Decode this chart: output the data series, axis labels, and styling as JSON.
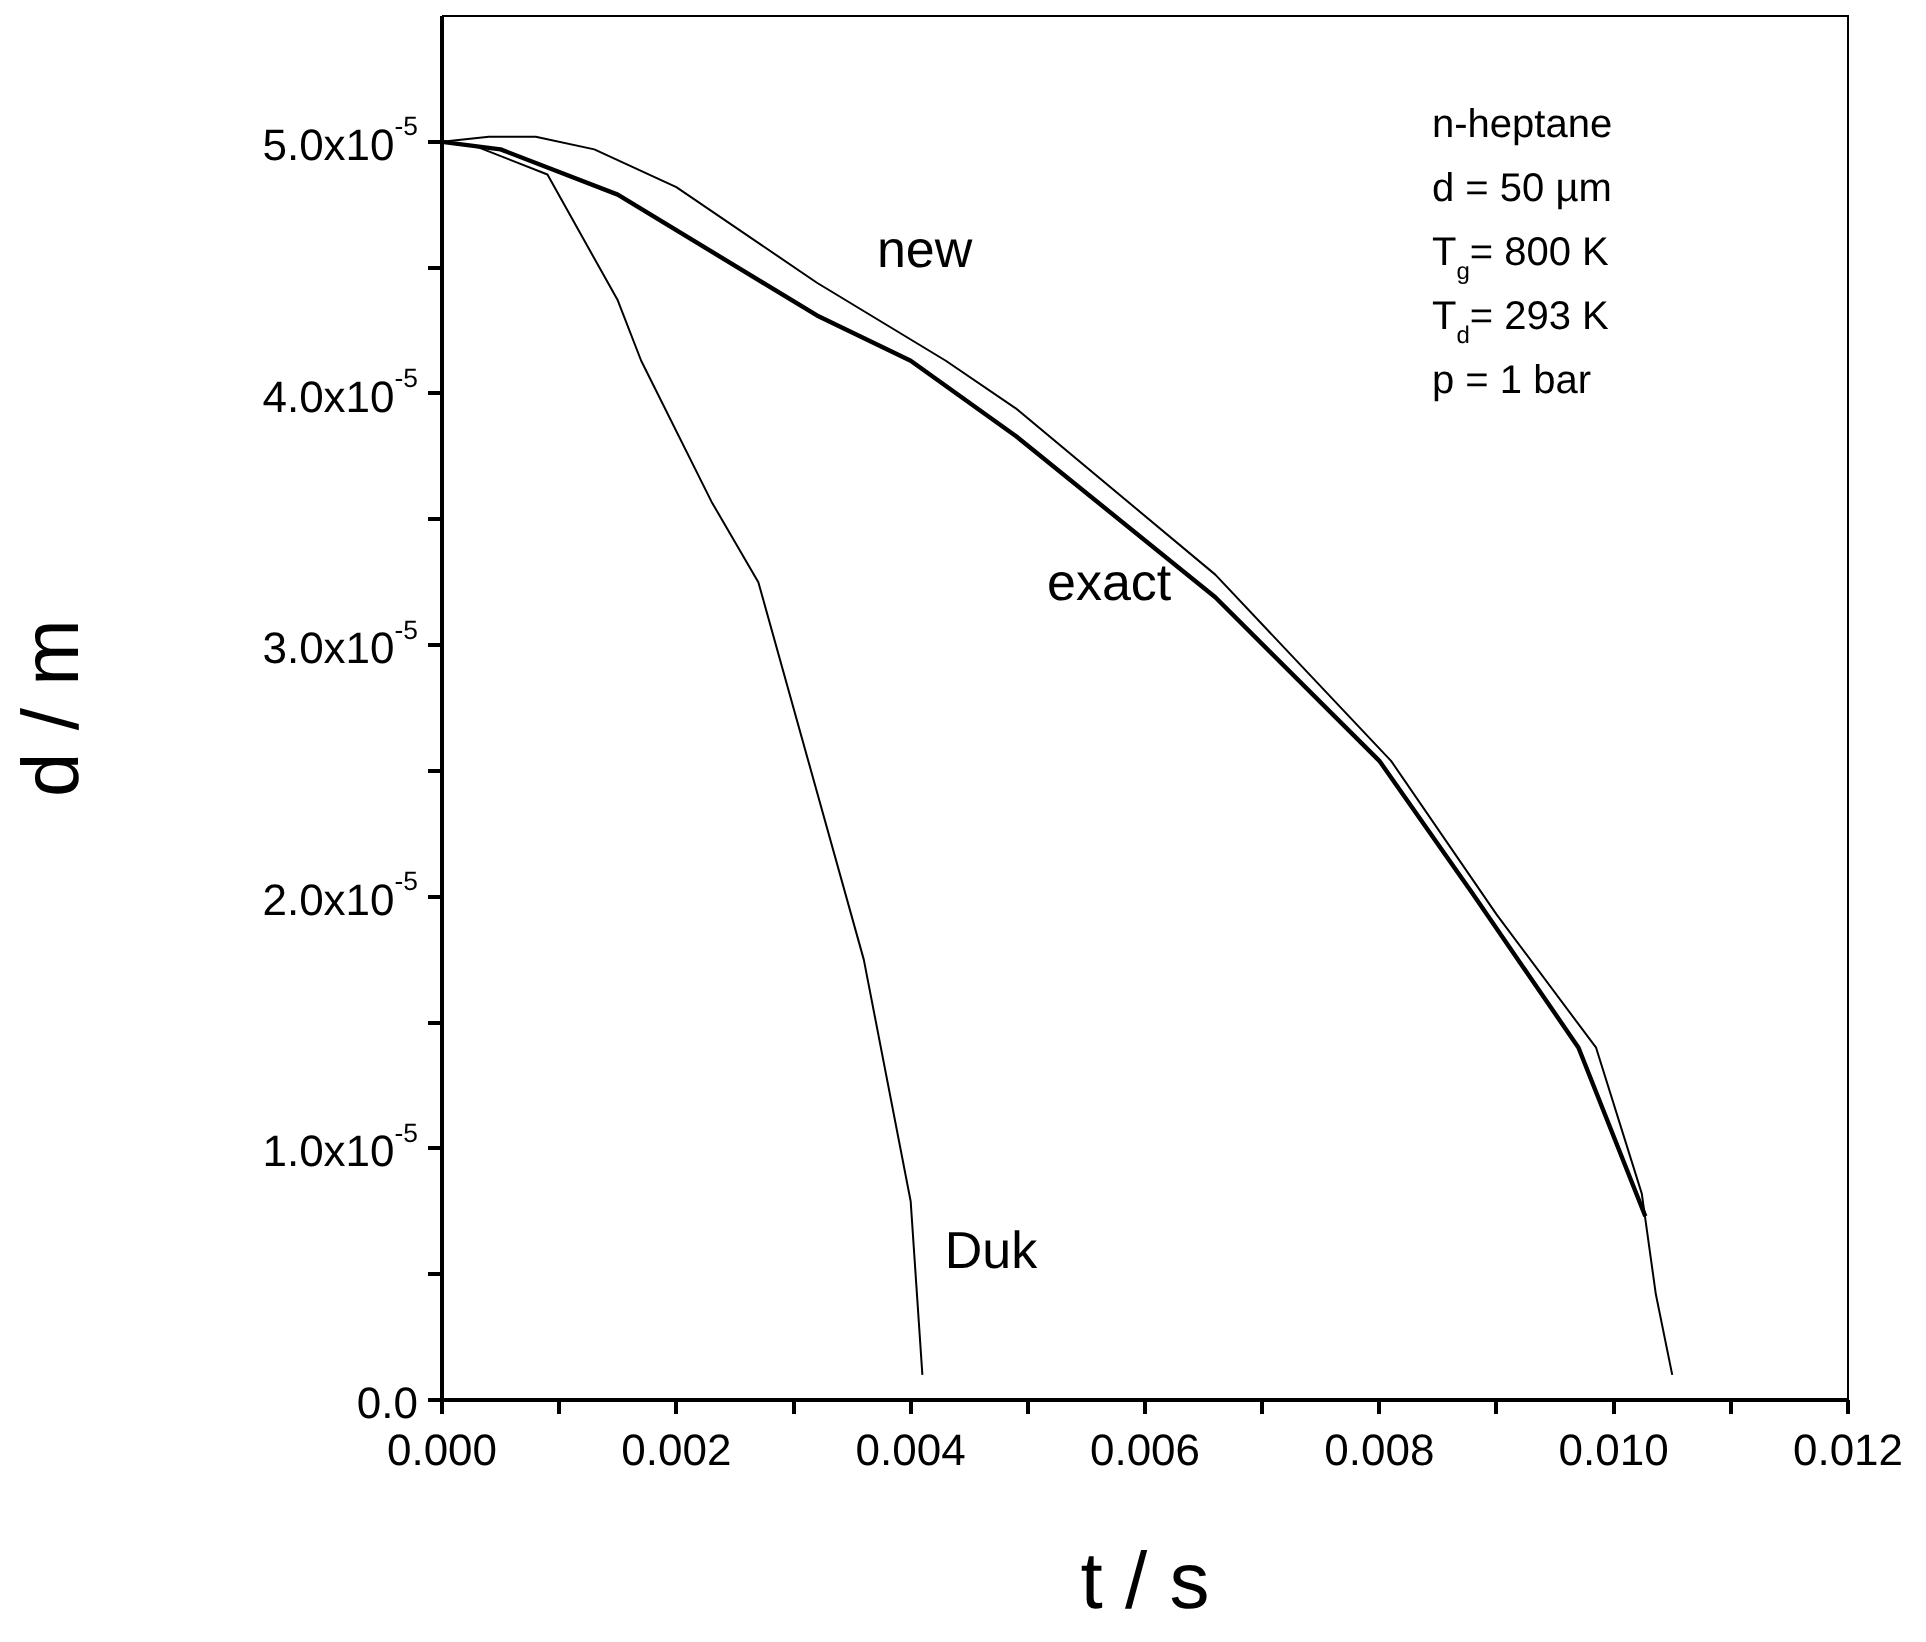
{
  "chart_data": {
    "type": "line",
    "xlabel": "t / s",
    "ylabel": "d / m",
    "xlim": [
      0,
      0.012
    ],
    "ylim": [
      0,
      5.5e-05
    ],
    "xticks": [
      {
        "value": 0,
        "label": "0.000"
      },
      {
        "value": 0.001,
        "label": null
      },
      0.002,
      {
        "value": 0.003,
        "label": null
      },
      0.004,
      {
        "value": 0.005,
        "label": null
      },
      0.006,
      {
        "value": 0.007,
        "label": null
      },
      0.008,
      {
        "value": 0.009,
        "label": null
      },
      {
        "value": 0.01,
        "label": "0.010"
      },
      {
        "value": 0.011,
        "label": null
      },
      0.012
    ],
    "yticks": [
      {
        "value": 0,
        "label": "0.0"
      },
      {
        "value": 5e-06,
        "label": null
      },
      {
        "value": 1e-05,
        "label": "1.0x10$^{-5}$"
      },
      {
        "value": 1.5e-05,
        "label": null
      },
      {
        "value": 2e-05,
        "label": "2.0x10$^{-5}$"
      },
      {
        "value": 2.5e-05,
        "label": null
      },
      {
        "value": 3e-05,
        "label": "3.0x10$^{-5}$"
      },
      {
        "value": 3.5e-05,
        "label": null
      },
      {
        "value": 4e-05,
        "label": "4.0x10$^{-5}$"
      },
      {
        "value": 4.5e-05,
        "label": null
      },
      {
        "value": 5e-05,
        "label": "5.0x10$^{-5}$"
      }
    ],
    "grid": false,
    "legend": false,
    "marker": "none",
    "line_style": "solid",
    "annotations": [
      "n-heptane",
      "d = 50 µm",
      "T$_{g}$= 800 K",
      "T$_{d}$= 293 K",
      "p = 1 bar"
    ],
    "series": [
      {
        "name": "new",
        "color": "#000000",
        "x": [
          0,
          0.0004,
          0.0008,
          0.0013,
          0.002,
          0.0032,
          0.0043,
          0.0049,
          0.0066,
          0.0081,
          0.009,
          0.00985,
          0.01024,
          0.01036,
          0.0105
        ],
        "values": [
          5e-05,
          5.02e-05,
          5.02e-05,
          4.97e-05,
          4.82e-05,
          4.44e-05,
          4.13e-05,
          3.94e-05,
          3.28e-05,
          2.54e-05,
          1.93e-05,
          1.4e-05,
          8.2e-06,
          4.2e-06,
          1e-06
        ]
      },
      {
        "name": "exact",
        "color": "#000000",
        "x": [
          0,
          0.0005,
          0.0015,
          0.0032,
          0.004,
          0.0049,
          0.0066,
          0.008,
          0.0088,
          0.0097,
          0.01027
        ],
        "values": [
          5e-05,
          4.97e-05,
          4.79e-05,
          4.31e-05,
          4.13e-05,
          3.83e-05,
          3.19e-05,
          2.54e-05,
          2.01e-05,
          1.4e-05,
          7.3e-06
        ]
      },
      {
        "name": "Duk",
        "color": "#000000",
        "x": [
          0,
          0.0003,
          0.0009,
          0.0015,
          0.0017,
          0.0023,
          0.0027,
          0.0036,
          0.004,
          0.0041
        ],
        "values": [
          5e-05,
          4.98e-05,
          4.87e-05,
          4.37e-05,
          4.13e-05,
          3.57e-05,
          3.25e-05,
          1.75e-05,
          7.9e-06,
          1e-06
        ]
      }
    ]
  }
}
